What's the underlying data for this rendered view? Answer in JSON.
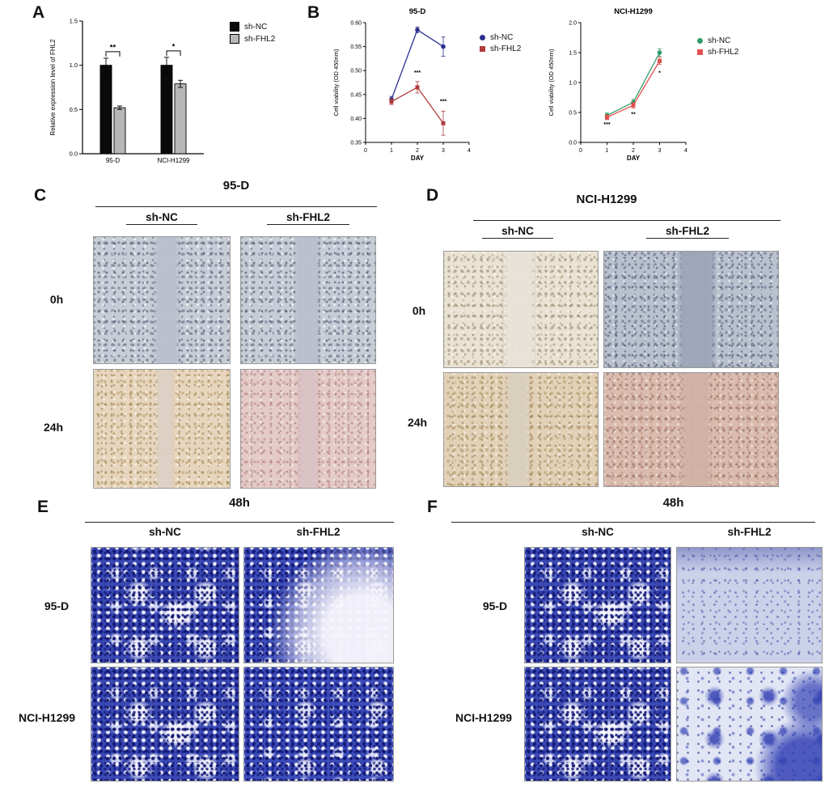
{
  "figure": {
    "background": "#ffffff",
    "panel_a": {
      "label": "A"
    },
    "panel_b": {
      "label": "B"
    },
    "panel_c": {
      "label": "C",
      "title": "95-D",
      "col_headers": [
        "sh-NC",
        "sh-FHL2"
      ],
      "row_labels": [
        "0h",
        "24h"
      ]
    },
    "panel_d": {
      "label": "D",
      "title": "NCI-H1299",
      "col_headers": [
        "sh-NC",
        "sh-FHL2"
      ],
      "row_labels": [
        "0h",
        "24h"
      ]
    },
    "panel_e": {
      "label": "E",
      "title": "48h",
      "col_headers": [
        "sh-NC",
        "sh-FHL2"
      ],
      "row_labels": [
        "95-D",
        "NCI-H1299"
      ]
    },
    "panel_f": {
      "label": "F",
      "title": "48h",
      "col_headers": [
        "sh-NC",
        "sh-FHL2"
      ],
      "row_labels": [
        "95-D",
        "NCI-H1299"
      ]
    }
  },
  "chart_data": [
    {
      "id": "fhl2-expression-bar",
      "type": "bar",
      "title": "",
      "xlabel": "",
      "ylabel": "Relative expression level of FHL2",
      "ylim": [
        0,
        1.5
      ],
      "yticks": [
        0,
        0.5,
        1.0,
        1.5
      ],
      "ytick_labels": [
        "0.0",
        "0.5",
        "1.0",
        "1.5"
      ],
      "categories": [
        "95-D",
        "NCI-H1299"
      ],
      "series": [
        {
          "name": "sh-NC",
          "color": "#0a0a0a",
          "values": [
            1.0,
            1.0
          ],
          "errors": [
            0.08,
            0.09
          ]
        },
        {
          "name": "sh-FHL2",
          "color": "#b7b7b7",
          "values": [
            0.52,
            0.79
          ],
          "errors": [
            0.02,
            0.04
          ]
        }
      ],
      "significance": [
        {
          "category": "95-D",
          "label": "**"
        },
        {
          "category": "NCI-H1299",
          "label": "*"
        }
      ],
      "legend_position": "right"
    },
    {
      "id": "viability-95d",
      "type": "line",
      "title": "95-D",
      "xlabel": "DAY",
      "ylabel": "Cell viability (OD 450nm)",
      "xlim": [
        0,
        4
      ],
      "ylim": [
        0.35,
        0.6
      ],
      "xticks": [
        0,
        1,
        2,
        3,
        4
      ],
      "xtick_labels": [
        "0",
        "1",
        "2",
        "3",
        "4"
      ],
      "yticks": [
        0.35,
        0.4,
        0.45,
        0.5,
        0.55,
        0.6
      ],
      "ytick_labels": [
        "0.35",
        "0.40",
        "0.45",
        "0.50",
        "0.55",
        "0.60"
      ],
      "x": [
        1,
        2,
        3
      ],
      "series": [
        {
          "name": "sh-NC",
          "marker": "circle",
          "color": "#2b2f8e",
          "values": [
            0.44,
            0.585,
            0.55
          ],
          "errors": [
            0.006,
            0.006,
            0.02
          ]
        },
        {
          "name": "sh-FHL2",
          "marker": "square",
          "color": "#b03b3b",
          "values": [
            0.435,
            0.465,
            0.39
          ],
          "errors": [
            0.006,
            0.012,
            0.025
          ]
        }
      ],
      "annotations": [
        {
          "x": 2,
          "y": 0.492,
          "label": "***"
        },
        {
          "x": 3,
          "y": 0.432,
          "label": "***"
        }
      ],
      "legend_position": "right"
    },
    {
      "id": "viability-h1299",
      "type": "line",
      "title": "NCI-H1299",
      "xlabel": "DAY",
      "ylabel": "Cell viability (OD 450nm)",
      "xlim": [
        0,
        4
      ],
      "ylim": [
        0,
        2
      ],
      "xticks": [
        0,
        1,
        2,
        3,
        4
      ],
      "xtick_labels": [
        "0",
        "1",
        "2",
        "3",
        "4"
      ],
      "yticks": [
        0,
        0.5,
        1,
        1.5,
        2
      ],
      "ytick_labels": [
        "0.0",
        "0.5",
        "1.0",
        "1.5",
        "2.0"
      ],
      "x": [
        1,
        2,
        3
      ],
      "series": [
        {
          "name": "sh-NC",
          "marker": "circle",
          "color": "#2f9d68",
          "values": [
            0.45,
            0.67,
            1.5
          ],
          "errors": [
            0.04,
            0.05,
            0.06
          ]
        },
        {
          "name": "sh-FHL2",
          "marker": "square",
          "color": "#e0504f",
          "values": [
            0.42,
            0.62,
            1.36
          ],
          "errors": [
            0.04,
            0.05,
            0.06
          ]
        }
      ],
      "annotations": [
        {
          "x": 1,
          "y": 0.27,
          "label": "***"
        },
        {
          "x": 2,
          "y": 0.44,
          "label": "**"
        },
        {
          "x": 3,
          "y": 1.13,
          "label": "*"
        }
      ],
      "legend_position": "right"
    }
  ]
}
